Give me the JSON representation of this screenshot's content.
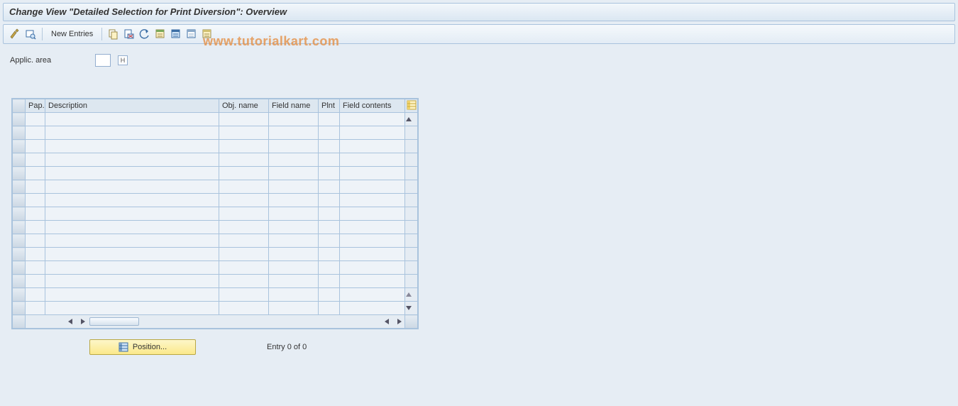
{
  "title": "Change View \"Detailed Selection for Print Diversion\": Overview",
  "watermark": "www.tutorialkart.com",
  "toolbar": {
    "new_entries_label": "New Entries"
  },
  "form": {
    "applic_area_label": "Applic. area",
    "applic_area_value": "",
    "help_hint": "H"
  },
  "grid": {
    "columns": {
      "pap": "Pap.",
      "description": "Description",
      "obj_name": "Obj. name",
      "field_name": "Field name",
      "plnt": "Plnt",
      "field_contents": "Field contents"
    },
    "row_count": 15
  },
  "footer": {
    "position_label": "Position...",
    "entry_text": "Entry 0 of 0"
  },
  "colors": {
    "background": "#e6edf4",
    "panel_border": "#a9c3dd",
    "header_grad_top": "#f2f7fb",
    "header_grad_bot": "#dbe7f2",
    "grid_header": "#dde7f0",
    "grid_cell": "#eef3f8",
    "button_yellow_top": "#fdf6c9",
    "button_yellow_bot": "#fbe98a",
    "watermark": "#e58a3a"
  }
}
